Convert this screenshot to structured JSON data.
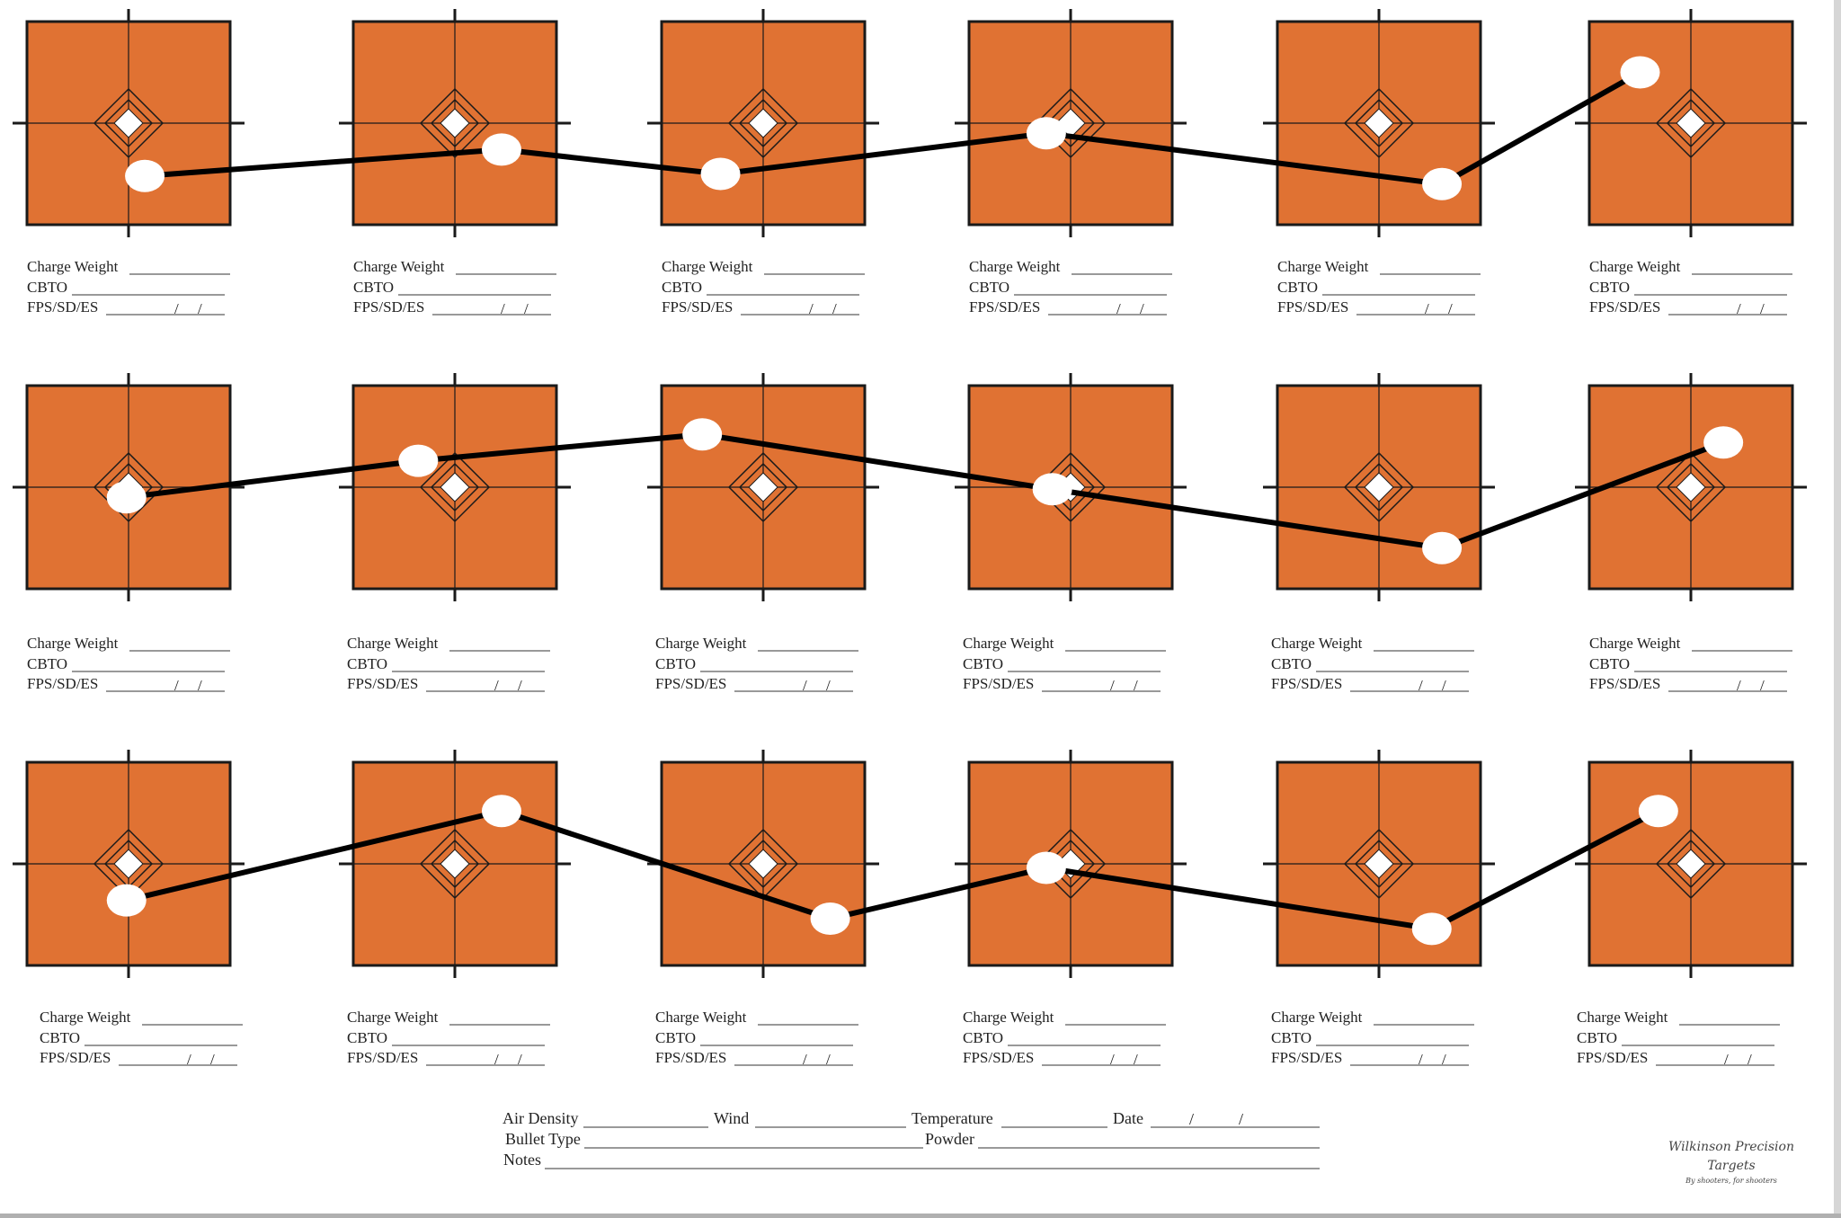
{
  "colors": {
    "target_fill": "#e07233",
    "target_border": "#1a1a1a",
    "crosshair": "#1a1a1a",
    "diamond_fill": "#ffffff",
    "hit_marker": "#ffffff",
    "trend_line": "#000000"
  },
  "target_card": {
    "charge_label": "Charge Weight",
    "cbto_label": "CBTO",
    "fps_label": "FPS/SD/ES"
  },
  "rows": [
    {
      "hits": [
        [
          0.58,
          0.24
        ],
        [
          0.73,
          0.37
        ],
        [
          0.29,
          0.25
        ],
        [
          0.38,
          0.45
        ],
        [
          0.81,
          0.2
        ],
        [
          0.25,
          0.75
        ]
      ]
    },
    {
      "hits": [
        [
          0.49,
          0.45
        ],
        [
          0.32,
          0.63
        ],
        [
          0.2,
          0.76
        ],
        [
          0.41,
          0.49
        ],
        [
          0.81,
          0.2
        ],
        [
          0.66,
          0.72
        ]
      ]
    },
    {
      "hits": [
        [
          0.49,
          0.32
        ],
        [
          0.73,
          0.76
        ],
        [
          0.83,
          0.23
        ],
        [
          0.38,
          0.48
        ],
        [
          0.76,
          0.18
        ],
        [
          0.34,
          0.76
        ]
      ]
    }
  ],
  "footer": {
    "air_density_label": "Air Density",
    "wind_label": "Wind",
    "temperature_label": "Temperature",
    "date_label": "Date",
    "bullet_type_label": "Bullet Type",
    "powder_label": "Powder",
    "notes_label": "Notes"
  },
  "brand": {
    "line1": "Wilkinson Precision",
    "line2": "Targets",
    "tagline": "By shooters, for shooters"
  }
}
